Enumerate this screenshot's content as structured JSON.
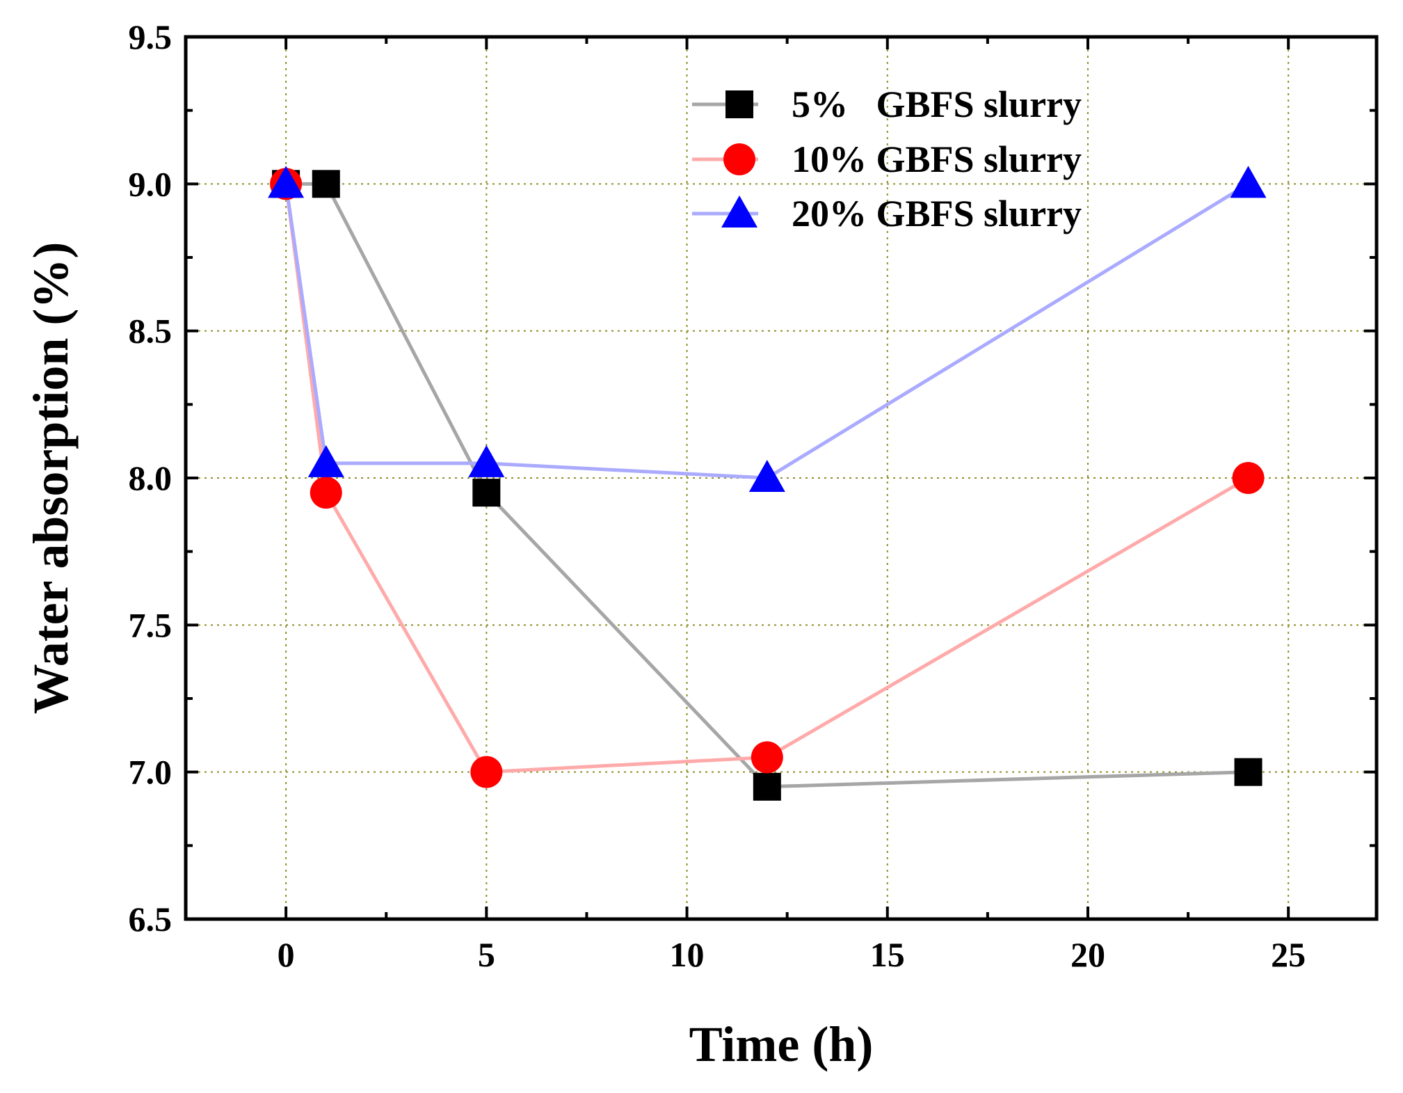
{
  "chart_data": {
    "type": "line",
    "title": "",
    "xlabel": "Time (h)",
    "ylabel": "Water absorption (%)",
    "xlim": [
      -2.5,
      27.2
    ],
    "ylim": [
      6.5,
      9.5
    ],
    "xticks": [
      0,
      5,
      10,
      15,
      20,
      25
    ],
    "xtick_labels": [
      "0",
      "5",
      "10",
      "15",
      "20",
      "25"
    ],
    "yticks": [
      6.5,
      7.0,
      7.5,
      8.0,
      8.5,
      9.0,
      9.5
    ],
    "ytick_labels": [
      "6.5",
      "7.0",
      "7.5",
      "8.0",
      "8.5",
      "9.0",
      "9.5"
    ],
    "grid": true,
    "legend_position": "top-right",
    "series": [
      {
        "name": "5%   GBFS slurry",
        "marker": "square",
        "marker_color": "#000000",
        "line_color": "#a6a6a6",
        "x": [
          0,
          1,
          5,
          12,
          24
        ],
        "y": [
          9.0,
          9.0,
          7.95,
          6.95,
          7.0
        ]
      },
      {
        "name": "10% GBFS slurry",
        "marker": "circle",
        "marker_color": "#ff0000",
        "line_color": "#ffaaaa",
        "x": [
          0,
          1,
          5,
          12,
          24
        ],
        "y": [
          9.0,
          7.95,
          7.0,
          7.05,
          8.0
        ]
      },
      {
        "name": "20% GBFS slurry",
        "marker": "triangle",
        "marker_color": "#0000ff",
        "line_color": "#aaaaff",
        "x": [
          0,
          1,
          5,
          12,
          24
        ],
        "y": [
          9.0,
          8.05,
          8.05,
          8.0,
          9.0
        ]
      }
    ]
  }
}
